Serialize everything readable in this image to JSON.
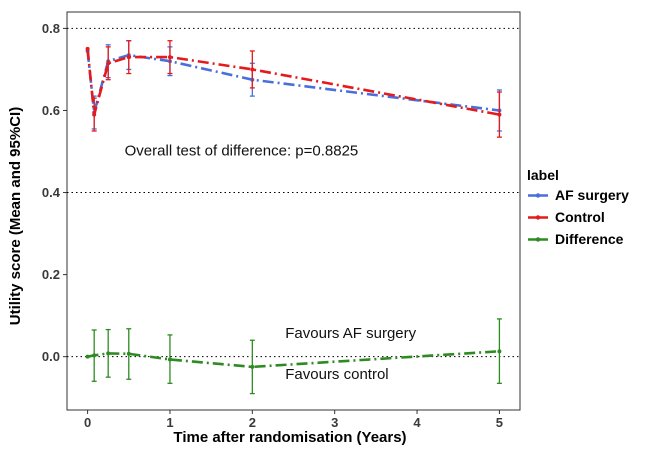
{
  "chart_data": {
    "type": "line",
    "title": "",
    "xlabel": "Time after randomisation (Years)",
    "ylabel": "Utility score (Mean and 95%CI)",
    "xlim": [
      -0.25,
      5.25
    ],
    "ylim": [
      -0.13,
      0.84
    ],
    "x_ticks": [
      0,
      1,
      2,
      3,
      4,
      5
    ],
    "x_tick_labels": [
      "0",
      "1",
      "2",
      "3",
      "4",
      "5"
    ],
    "y_ticks": [
      0.0,
      0.2,
      0.4,
      0.6,
      0.8
    ],
    "y_tick_labels": [
      "0.0",
      "0.2",
      "0.4",
      "0.6",
      "0.8"
    ],
    "reference_lines_y": [
      0.0,
      0.4,
      0.8
    ],
    "grid": false,
    "legend": {
      "title": "label",
      "position": "right"
    },
    "series": [
      {
        "name": "AF surgery",
        "color": "#4a6fdc",
        "points": [
          {
            "x": 0,
            "y": 0.745,
            "lo": 0.745,
            "hi": 0.745
          },
          {
            "x": 0.08,
            "y": 0.595,
            "lo": 0.555,
            "hi": 0.635
          },
          {
            "x": 0.25,
            "y": 0.72,
            "lo": 0.68,
            "hi": 0.76
          },
          {
            "x": 0.5,
            "y": 0.735,
            "lo": 0.7,
            "hi": 0.77
          },
          {
            "x": 1,
            "y": 0.72,
            "lo": 0.685,
            "hi": 0.755
          },
          {
            "x": 2,
            "y": 0.675,
            "lo": 0.635,
            "hi": 0.715
          },
          {
            "x": 5,
            "y": 0.6,
            "lo": 0.55,
            "hi": 0.65
          }
        ]
      },
      {
        "name": "Control",
        "color": "#e41a1c",
        "points": [
          {
            "x": 0,
            "y": 0.75,
            "lo": 0.75,
            "hi": 0.75
          },
          {
            "x": 0.08,
            "y": 0.59,
            "lo": 0.55,
            "hi": 0.63
          },
          {
            "x": 0.25,
            "y": 0.715,
            "lo": 0.675,
            "hi": 0.755
          },
          {
            "x": 0.5,
            "y": 0.73,
            "lo": 0.69,
            "hi": 0.77
          },
          {
            "x": 1,
            "y": 0.73,
            "lo": 0.69,
            "hi": 0.77
          },
          {
            "x": 2,
            "y": 0.7,
            "lo": 0.655,
            "hi": 0.745
          },
          {
            "x": 5,
            "y": 0.59,
            "lo": 0.535,
            "hi": 0.645
          }
        ]
      },
      {
        "name": "Difference",
        "color": "#2e8b22",
        "points": [
          {
            "x": 0,
            "y": 0.0,
            "lo": 0.0,
            "hi": 0.0
          },
          {
            "x": 0.08,
            "y": 0.003,
            "lo": -0.06,
            "hi": 0.065
          },
          {
            "x": 0.25,
            "y": 0.008,
            "lo": -0.05,
            "hi": 0.066
          },
          {
            "x": 0.5,
            "y": 0.007,
            "lo": -0.055,
            "hi": 0.068
          },
          {
            "x": 1,
            "y": -0.007,
            "lo": -0.065,
            "hi": 0.053
          },
          {
            "x": 2,
            "y": -0.025,
            "lo": -0.09,
            "hi": 0.04
          },
          {
            "x": 5,
            "y": 0.013,
            "lo": -0.065,
            "hi": 0.092
          }
        ]
      }
    ],
    "annotations": [
      {
        "text": "Overall test of difference: p=0.8825",
        "x": 0.45,
        "y": 0.49
      },
      {
        "text": "Favours AF surgery",
        "x": 2.4,
        "y": 0.045
      },
      {
        "text": "Favours control",
        "x": 2.4,
        "y": -0.055
      }
    ]
  }
}
